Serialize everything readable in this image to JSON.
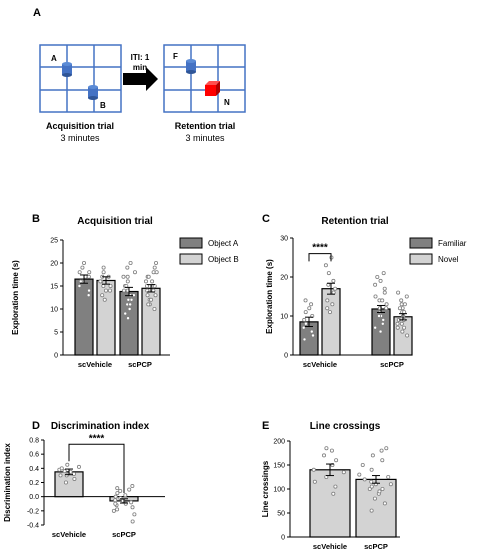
{
  "figure": {
    "panel_a": {
      "letter": "A",
      "acquisition": {
        "title": "Acquisition trial",
        "duration": "3 minutes",
        "object_1": "A",
        "object_2": "B"
      },
      "iti": {
        "line1": "ITI: 1",
        "line2": "min"
      },
      "retention": {
        "title": "Retention trial",
        "duration": "3 minutes",
        "object_familiar": "F",
        "object_novel": "N"
      },
      "colors": {
        "grid": "#4472c4",
        "familiar_object": "#4472c4",
        "novel_object": "#ff0000",
        "arrow": "#000000"
      }
    },
    "panel_letters": {
      "b": "B",
      "c": "C",
      "d": "D",
      "e": "E"
    }
  },
  "chart_data": [
    {
      "id": "B",
      "type": "bar",
      "title": "Acquisition trial",
      "ylabel": "Exploration time (s)",
      "xlabel": "",
      "ylim": [
        0,
        25
      ],
      "yticks": [
        "0",
        "5",
        "10",
        "15",
        "20",
        "25"
      ],
      "categories": [
        "scVehicle",
        "scPCP"
      ],
      "series": [
        {
          "name": "Object A",
          "values": [
            16.5,
            13.8
          ],
          "errors": [
            0.9,
            0.9
          ],
          "color": "#808080"
        },
        {
          "name": "Object B",
          "values": [
            16.2,
            14.5
          ],
          "errors": [
            0.8,
            0.8
          ],
          "color": "#d3d3d3"
        }
      ],
      "legend_position": "right",
      "points": [
        [
          [
            13,
            14,
            15,
            16,
            17,
            18,
            19,
            20,
            17,
            16,
            15,
            18
          ],
          [
            12,
            13,
            14,
            15,
            16,
            17,
            18,
            19,
            16,
            15,
            17,
            14
          ]
        ],
        [
          [
            8,
            9,
            10,
            11,
            12,
            13,
            14,
            15,
            16,
            17,
            18,
            19,
            20,
            11,
            13,
            15,
            17,
            12,
            14
          ],
          [
            10,
            11,
            12,
            13,
            14,
            15,
            16,
            17,
            18,
            19,
            20,
            13,
            15,
            14,
            16,
            12,
            18,
            11,
            17,
            15
          ]
        ]
      ]
    },
    {
      "id": "C",
      "type": "bar",
      "title": "Retention trial",
      "ylabel": "Exploration time (s)",
      "xlabel": "",
      "ylim": [
        0,
        30
      ],
      "yticks": [
        "0",
        "10",
        "20",
        "30"
      ],
      "categories": [
        "scVehicle",
        "scPCP"
      ],
      "series": [
        {
          "name": "Familiar",
          "values": [
            8.5,
            11.8
          ],
          "errors": [
            1.2,
            0.9
          ],
          "color": "#808080"
        },
        {
          "name": "Novel",
          "values": [
            17.0,
            9.8
          ],
          "errors": [
            1.4,
            0.8
          ],
          "color": "#d3d3d3"
        }
      ],
      "significance": {
        "label": "****",
        "category": "scVehicle"
      },
      "legend_position": "right",
      "points": [
        [
          [
            4,
            5,
            6,
            7,
            8,
            9,
            10,
            11,
            12,
            13,
            14
          ],
          [
            11,
            12,
            13,
            14,
            16,
            17,
            18,
            19,
            21,
            23,
            25
          ]
        ],
        [
          [
            6,
            7,
            8,
            9,
            10,
            11,
            12,
            13,
            14,
            15,
            16,
            17,
            18,
            19,
            20,
            21,
            10,
            12,
            14
          ],
          [
            5,
            6,
            7,
            8,
            9,
            10,
            11,
            12,
            13,
            14,
            15,
            16,
            9,
            11,
            8,
            10,
            12,
            13,
            7
          ]
        ]
      ]
    },
    {
      "id": "D",
      "type": "bar",
      "title": "Discrimination index",
      "ylabel": "Discrimination index",
      "xlabel": "",
      "ylim": [
        -0.4,
        0.8
      ],
      "yticks": [
        "-0.4",
        "-0.2",
        "0.0",
        "0.2",
        "0.4",
        "0.6",
        "0.8"
      ],
      "categories": [
        "scVehicle",
        "scPCP"
      ],
      "series": [
        {
          "name": "",
          "values": [
            0.35,
            -0.06
          ],
          "errors": [
            0.04,
            0.03
          ],
          "color": "#d3d3d3"
        }
      ],
      "significance": {
        "label": "****",
        "between": [
          "scVehicle",
          "scPCP"
        ]
      },
      "points": [
        [
          0.2,
          0.25,
          0.3,
          0.32,
          0.35,
          0.38,
          0.4,
          0.42,
          0.45,
          0.3,
          0.36
        ],
        [
          -0.35,
          -0.25,
          -0.2,
          -0.15,
          -0.12,
          -0.1,
          -0.08,
          -0.05,
          -0.02,
          0.0,
          0.05,
          0.1,
          0.12,
          0.15,
          -0.18,
          -0.06,
          0.02,
          -0.1,
          0.08
        ]
      ]
    },
    {
      "id": "E",
      "type": "bar",
      "title": "Line crossings",
      "ylabel": "Line crossings",
      "xlabel": "",
      "ylim": [
        0,
        200
      ],
      "yticks": [
        "0",
        "50",
        "100",
        "150",
        "200"
      ],
      "categories": [
        "scVehicle",
        "scPCP"
      ],
      "series": [
        {
          "name": "",
          "values": [
            140,
            120
          ],
          "errors": [
            12,
            8
          ],
          "color": "#d3d3d3"
        }
      ],
      "points": [
        [
          90,
          105,
          115,
          125,
          135,
          140,
          150,
          160,
          170,
          180,
          185
        ],
        [
          55,
          70,
          80,
          90,
          95,
          100,
          105,
          110,
          115,
          120,
          125,
          130,
          140,
          150,
          160,
          170,
          180,
          185,
          100,
          110
        ]
      ]
    }
  ]
}
